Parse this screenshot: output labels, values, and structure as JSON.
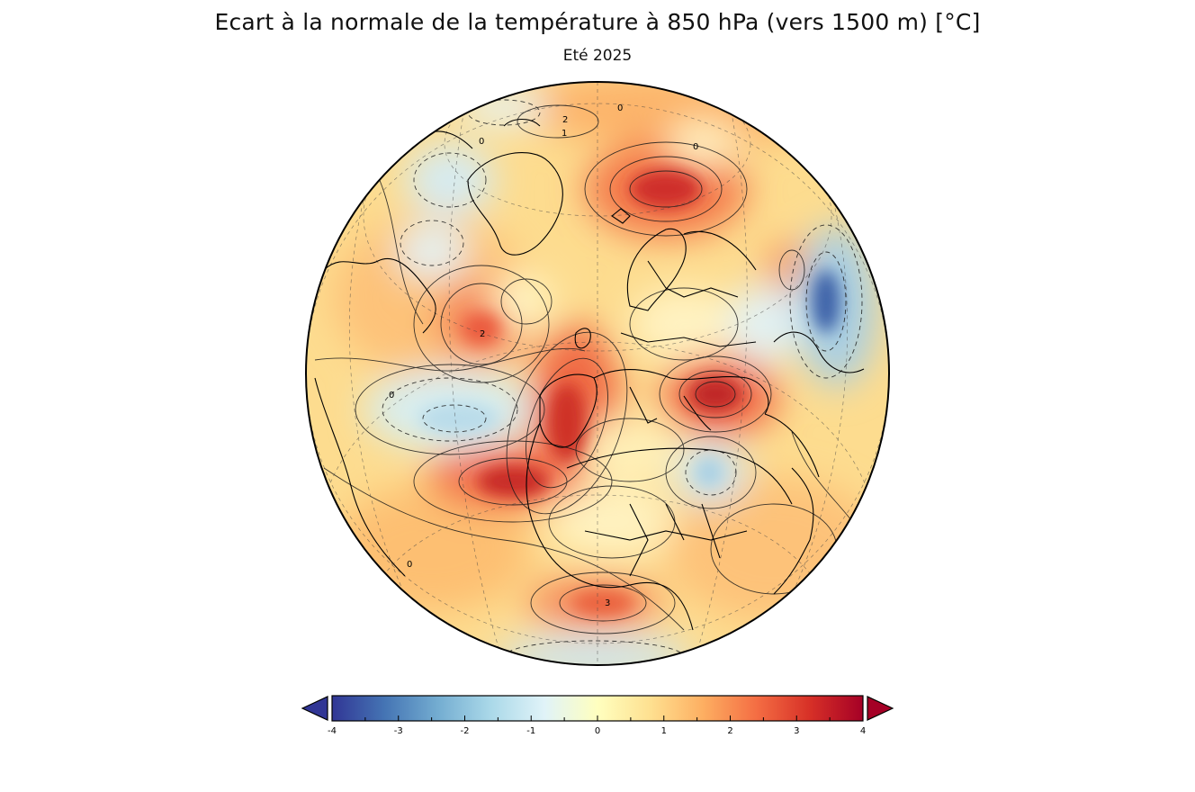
{
  "title": "Ecart à la normale de la température à 850 hPa (vers 1500 m)  [°C]",
  "subtitle": "Eté 2025",
  "colorbar": {
    "ticks": [
      "-4",
      "-3",
      "-2",
      "-1",
      "0",
      "1",
      "2",
      "3",
      "4"
    ],
    "range": [
      -4,
      4
    ],
    "extend": "both",
    "colors": [
      "#313695",
      "#4575b4",
      "#74add1",
      "#abd9e9",
      "#e0f3f8",
      "#ffffbf",
      "#fee090",
      "#fdae61",
      "#f46d43",
      "#d73027",
      "#a50026"
    ]
  },
  "map": {
    "projection": "orthographic",
    "center": "Europe / North Atlantic",
    "warm_anomalies": [
      {
        "region": "Iberia / West Africa coast",
        "value": 3
      },
      {
        "region": "Balkans / Black Sea",
        "value": 3
      },
      {
        "region": "Scandinavia / Barents Sea",
        "value": 3
      },
      {
        "region": "Central North Atlantic",
        "value": 2
      },
      {
        "region": "South Atlantic",
        "value": 3
      }
    ],
    "cold_anomalies": [
      {
        "region": "Western Siberia",
        "value": -3
      },
      {
        "region": "Mid North Atlantic",
        "value": -1
      },
      {
        "region": "Sahara",
        "value": -1
      },
      {
        "region": "Canadian Arctic",
        "value": -1
      }
    ],
    "contour_labels": [
      "0",
      "2",
      "2",
      "0",
      "0",
      "0",
      "3",
      "0",
      "1"
    ]
  }
}
